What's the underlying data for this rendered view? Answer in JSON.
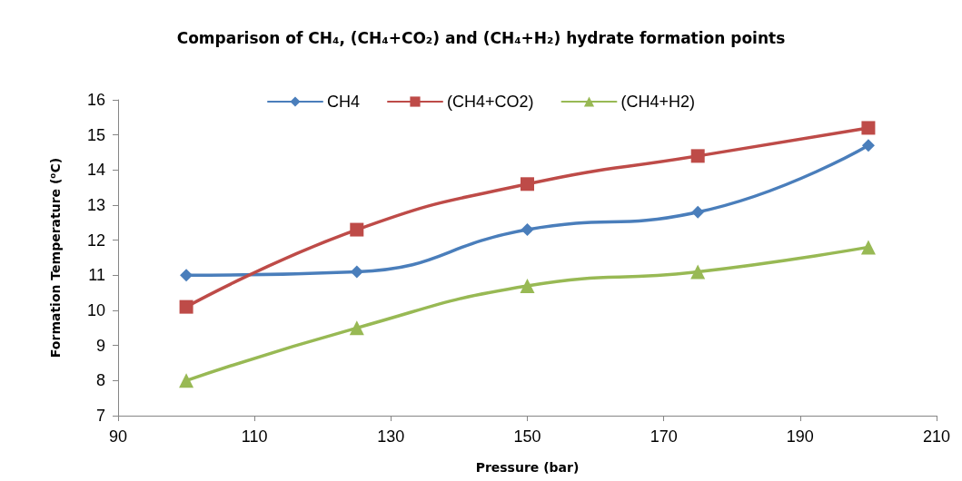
{
  "chart_data": {
    "type": "line",
    "title": "Comparison of CH₄, (CH₄+CO₂) and (CH₄+H₂) hydrate formation points",
    "xlabel": "Pressure (bar)",
    "ylabel": "Formation Temperature (⁰C)",
    "x": [
      100,
      125,
      150,
      175,
      200
    ],
    "series": [
      {
        "name": "CH4",
        "color": "#4a7ebb",
        "marker": "diamond",
        "values": [
          11.0,
          11.1,
          12.3,
          12.8,
          14.7
        ]
      },
      {
        "name": "(CH4+CO2)",
        "color": "#be4b48",
        "marker": "square",
        "values": [
          10.1,
          12.3,
          13.6,
          14.4,
          15.2
        ]
      },
      {
        "name": "(CH4+H2)",
        "color": "#98b954",
        "marker": "triangle",
        "values": [
          8.0,
          9.5,
          10.7,
          11.1,
          11.8
        ]
      }
    ],
    "xlim": [
      90,
      210
    ],
    "xticks": [
      90,
      110,
      130,
      150,
      170,
      190,
      210
    ],
    "ylim": [
      7,
      16
    ],
    "yticks": [
      7,
      8,
      9,
      10,
      11,
      12,
      13,
      14,
      15,
      16
    ],
    "grid": false,
    "legend": "top",
    "line_style": "solid"
  }
}
